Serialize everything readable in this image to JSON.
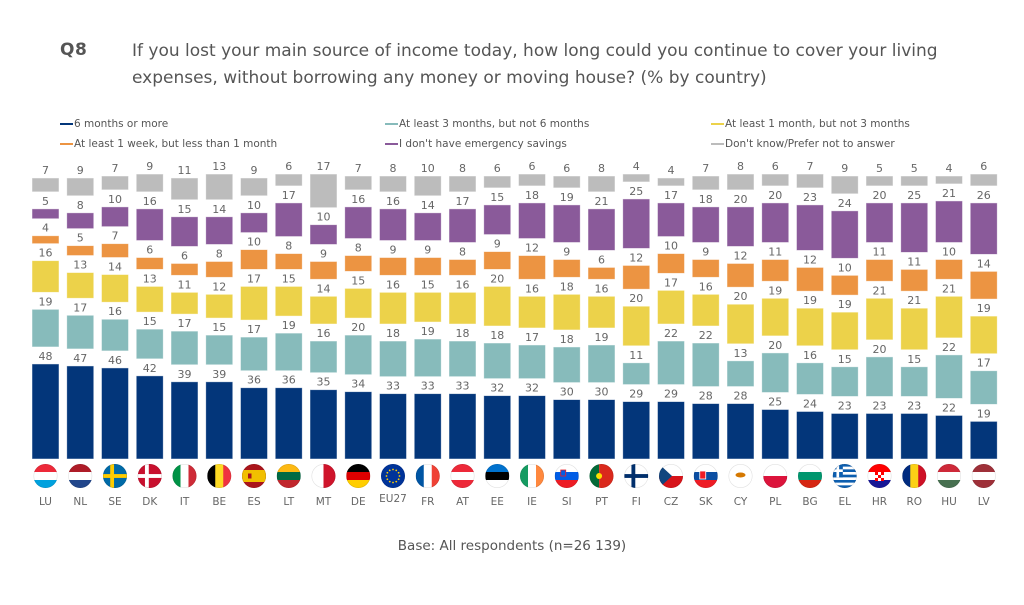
{
  "header": {
    "question_number": "Q8",
    "question_text": "If you lost your main source of income today, how long could you continue to cover your living expenses, without borrowing any money or moving house? (% by country)"
  },
  "footer": {
    "base_note": "Base: All respondents (n=26 139)"
  },
  "colors": {
    "six_plus": "#03367a",
    "three_six": "#87bbbb",
    "one_three": "#ecd24a",
    "week_month": "#ec9442",
    "no_savings": "#8a5a9a",
    "dont_know": "#bcbcbc"
  },
  "chart_data": {
    "type": "bar",
    "stacked": true,
    "title": "If you lost your main source of income today, how long could you continue to cover your living expenses, without borrowing any money or moving house? (% by country)",
    "xlabel": "",
    "ylabel": "",
    "unit": "%",
    "legend_position": "top",
    "grid": false,
    "categories": [
      "LU",
      "NL",
      "SE",
      "DK",
      "IT",
      "BE",
      "ES",
      "LT",
      "MT",
      "DE",
      "EU27",
      "FR",
      "AT",
      "EE",
      "IE",
      "SI",
      "PT",
      "FI",
      "CZ",
      "SK",
      "CY",
      "PL",
      "BG",
      "EL",
      "HR",
      "RO",
      "HU",
      "LV"
    ],
    "series": [
      {
        "key": "six_plus",
        "name": "6 months or more",
        "values": [
          48,
          47,
          46,
          42,
          39,
          39,
          36,
          36,
          35,
          34,
          33,
          33,
          33,
          32,
          32,
          30,
          30,
          29,
          29,
          28,
          28,
          25,
          24,
          23,
          23,
          23,
          22,
          19
        ]
      },
      {
        "key": "three_six",
        "name": "At least 3 months, but not 6 months",
        "values": [
          19,
          17,
          16,
          15,
          17,
          15,
          17,
          19,
          16,
          20,
          18,
          19,
          18,
          18,
          17,
          18,
          19,
          11,
          22,
          22,
          13,
          20,
          16,
          15,
          20,
          15,
          22,
          17
        ]
      },
      {
        "key": "one_three",
        "name": "At least 1 month, but not 3 months",
        "values": [
          16,
          13,
          14,
          13,
          11,
          12,
          17,
          15,
          14,
          15,
          16,
          15,
          16,
          20,
          16,
          18,
          16,
          20,
          17,
          16,
          20,
          19,
          19,
          19,
          21,
          21,
          21,
          19
        ]
      },
      {
        "key": "week_month",
        "name": "At least 1 week, but less than 1 month",
        "values": [
          4,
          5,
          7,
          6,
          6,
          8,
          10,
          8,
          9,
          8,
          9,
          9,
          8,
          9,
          12,
          9,
          6,
          12,
          10,
          9,
          12,
          11,
          12,
          10,
          11,
          11,
          10,
          14
        ]
      },
      {
        "key": "no_savings",
        "name": "I don't have emergency savings",
        "values": [
          5,
          8,
          10,
          16,
          15,
          14,
          10,
          17,
          10,
          16,
          16,
          14,
          17,
          15,
          18,
          19,
          21,
          25,
          17,
          18,
          20,
          20,
          23,
          24,
          20,
          25,
          21,
          26
        ]
      },
      {
        "key": "dont_know",
        "name": "Don't know/Prefer not to answer",
        "values": [
          7,
          9,
          7,
          9,
          11,
          13,
          9,
          6,
          17,
          7,
          8,
          10,
          8,
          6,
          6,
          6,
          8,
          4,
          4,
          7,
          8,
          6,
          7,
          9,
          5,
          5,
          4,
          6
        ]
      }
    ],
    "legend_order": [
      "six_plus",
      "three_six",
      "one_three",
      "week_month",
      "no_savings",
      "dont_know"
    ]
  },
  "flags": {
    "LU": [
      "#ed2939",
      "#ffffff",
      "#00a1de"
    ],
    "NL": [
      "#ae1c28",
      "#ffffff",
      "#21468b"
    ],
    "SE": "cross:#006aa7:#fecc00",
    "DK": "cross:#c8102e:#ffffff",
    "IT": [
      "v",
      "#009246",
      "#ffffff",
      "#ce2b37"
    ],
    "BE": [
      "v",
      "#000000",
      "#fdda24",
      "#ef3340"
    ],
    "ES": [
      "#aa151b",
      "#f1bf00",
      "#f1bf00",
      "#aa151b"
    ],
    "LT": [
      "#fdb913",
      "#006a44",
      "#c1272d"
    ],
    "MT": [
      "v",
      "#ffffff",
      "#cf142b"
    ],
    "DE": [
      "#000000",
      "#dd0000",
      "#ffce00"
    ],
    "EU27": "eu",
    "FR": [
      "v",
      "#0055a4",
      "#ffffff",
      "#ef4135"
    ],
    "AT": [
      "#ed2939",
      "#ffffff",
      "#ed2939"
    ],
    "EE": [
      "#0072ce",
      "#000000",
      "#ffffff"
    ],
    "IE": [
      "v",
      "#169b62",
      "#ffffff",
      "#ff883e"
    ],
    "SI": [
      "#ffffff",
      "#005ce5",
      "#ed1c24"
    ],
    "PT": [
      "v2",
      "#046a38",
      "#da291c"
    ],
    "FI": "cross:#ffffff:#002f6c",
    "CZ": "cz",
    "SK": [
      "#ffffff",
      "#0b4ea2",
      "#ee1c25"
    ],
    "CY": "cy",
    "PL": [
      "#ffffff",
      "#dc143c"
    ],
    "BG": [
      "#ffffff",
      "#00966e",
      "#d62612"
    ],
    "EL": "gr",
    "HR": [
      "#ff0000",
      "#ffffff",
      "#171796"
    ],
    "RO": [
      "v",
      "#002b7f",
      "#fcd116",
      "#ce1126"
    ],
    "HU": [
      "#ce2939",
      "#ffffff",
      "#477050"
    ],
    "LV": [
      "#9e3039",
      "#ffffff",
      "#9e3039"
    ]
  }
}
